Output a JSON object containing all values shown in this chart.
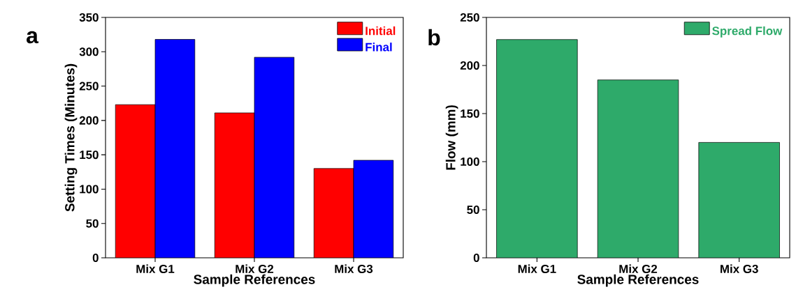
{
  "chart_data": [
    {
      "type": "bar",
      "title": "a",
      "xlabel": "Sample References",
      "ylabel": "Setting Times (Minutes)",
      "categories": [
        "Mix G1",
        "Mix G2",
        "Mix G3"
      ],
      "series": [
        {
          "name": "Initial",
          "color": "#ff0000",
          "values": [
            223,
            211,
            130
          ]
        },
        {
          "name": "Final",
          "color": "#0000ff",
          "values": [
            318,
            292,
            142
          ]
        }
      ],
      "ylim": [
        0,
        350
      ],
      "yticks": [
        0,
        50,
        100,
        150,
        200,
        250,
        300,
        350
      ],
      "legend": "top right",
      "grid": false
    },
    {
      "type": "bar",
      "title": "b",
      "xlabel": "Sample References",
      "ylabel": "Flow (mm)",
      "categories": [
        "Mix G1",
        "Mix G2",
        "Mix G3"
      ],
      "series": [
        {
          "name": "Spread Flow",
          "color": "#2eaa6a",
          "values": [
            227,
            185,
            120
          ]
        }
      ],
      "ylim": [
        0,
        250
      ],
      "yticks": [
        0,
        50,
        100,
        150,
        200,
        250
      ],
      "legend": "top right",
      "grid": false
    }
  ]
}
